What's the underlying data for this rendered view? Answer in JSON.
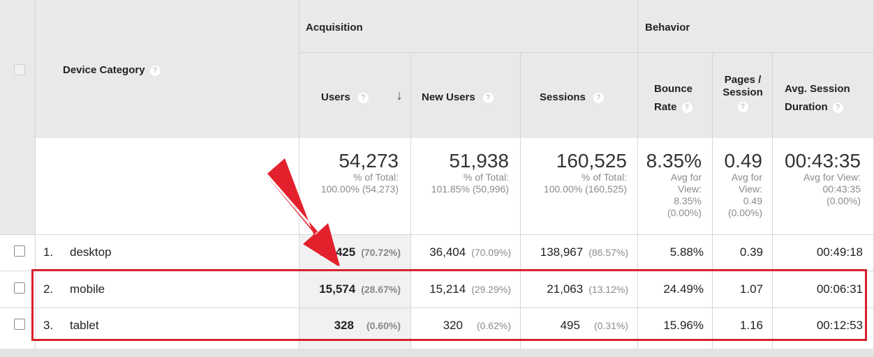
{
  "table": {
    "group_headers": {
      "acquisition": "Acquisition",
      "behavior": "Behavior"
    },
    "columns": {
      "device_category": "Device Category",
      "users": "Users",
      "new_users": "New Users",
      "sessions": "Sessions",
      "bounce_rate_line1": "Bounce",
      "bounce_rate_line2": "Rate",
      "pages_per_session_line1": "Pages /",
      "pages_per_session_line2": "Session",
      "avg_session_duration_line1": "Avg. Session",
      "avg_session_duration_line2": "Duration"
    },
    "help_glyph": "?",
    "sort_glyph": "↓",
    "totals": {
      "users": {
        "value": "54,273",
        "sub1": "% of Total:",
        "sub2": "100.00% (54,273)"
      },
      "new_users": {
        "value": "51,938",
        "sub1": "% of Total:",
        "sub2": "101.85% (50,996)"
      },
      "sessions": {
        "value": "160,525",
        "sub1": "% of Total:",
        "sub2": "100.00% (160,525)"
      },
      "bounce_rate": {
        "value": "8.35%",
        "sub1": "Avg for",
        "sub2": "View:",
        "sub3": "8.35%",
        "sub4": "(0.00%)"
      },
      "pages_per_session": {
        "value": "0.49",
        "sub1": "Avg for",
        "sub2": "View:",
        "sub3": "0.49",
        "sub4": "(0.00%)"
      },
      "avg_session_duration": {
        "value": "00:43:35",
        "sub1": "Avg for View:",
        "sub2": "00:43:35",
        "sub3": "(0.00%)"
      }
    },
    "rows": [
      {
        "index": "1.",
        "device": "desktop",
        "users": "38,425",
        "users_pct": "(70.72%)",
        "new_users": "36,404",
        "new_users_pct": "(70.09%)",
        "sessions": "138,967",
        "sessions_pct": "(86.57%)",
        "bounce_rate": "5.88%",
        "pages_per_session": "0.39",
        "avg_session_duration": "00:49:18"
      },
      {
        "index": "2.",
        "device": "mobile",
        "users": "15,574",
        "users_pct": "(28.67%)",
        "new_users": "15,214",
        "new_users_pct": "(29.29%)",
        "sessions": "21,063",
        "sessions_pct": "(13.12%)",
        "bounce_rate": "24.49%",
        "pages_per_session": "1.07",
        "avg_session_duration": "00:06:31"
      },
      {
        "index": "3.",
        "device": "tablet",
        "users": "328",
        "users_pct": "(0.60%)",
        "new_users": "320",
        "new_users_pct": "(0.62%)",
        "sessions": "495",
        "sessions_pct": "(0.31%)",
        "bounce_rate": "15.96%",
        "pages_per_session": "1.16",
        "avg_session_duration": "00:12:53"
      }
    ]
  },
  "annotations": {
    "arrow_color": "#e3212d",
    "highlight_color": "#d8202c"
  }
}
